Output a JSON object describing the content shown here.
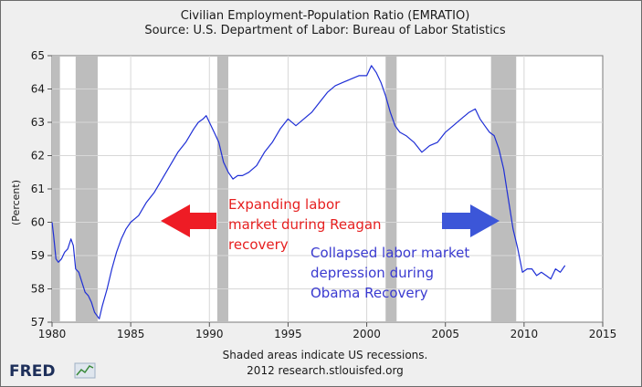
{
  "chart_data": {
    "type": "line",
    "title": "Civilian Employment-Population Ratio (EMRATIO)",
    "subtitle": "Source: U.S. Department of Labor: Bureau of Labor Statistics",
    "ylabel": "(Percent)",
    "xlim": [
      1980,
      2015
    ],
    "ylim": [
      57,
      65
    ],
    "x_ticks": [
      "1980",
      "1985",
      "1990",
      "1995",
      "2000",
      "2005",
      "2010",
      "2015"
    ],
    "y_ticks": [
      "57",
      "58",
      "59",
      "60",
      "61",
      "62",
      "63",
      "64",
      "65"
    ],
    "grid": true,
    "line_color": "#1f2fd6",
    "recessions": [
      [
        1980.0,
        1980.5
      ],
      [
        1981.5,
        1982.9
      ],
      [
        1990.5,
        1991.2
      ],
      [
        2001.2,
        2001.9
      ],
      [
        2007.9,
        2009.5
      ]
    ],
    "series": [
      {
        "x": [
          1980.0,
          1980.1,
          1980.25,
          1980.4,
          1980.6,
          1980.8,
          1981.0,
          1981.2,
          1981.35,
          1981.5,
          1981.7,
          1981.9,
          1982.1,
          1982.3,
          1982.5,
          1982.7,
          1982.85,
          1983.0,
          1983.2,
          1983.5,
          1983.8,
          1984.1,
          1984.4,
          1984.7,
          1985.0,
          1985.5,
          1986.0,
          1986.5,
          1987.0,
          1987.5,
          1988.0,
          1988.5,
          1989.0,
          1989.3,
          1989.6,
          1989.8,
          1990.0,
          1990.3,
          1990.6,
          1990.9,
          1991.2,
          1991.5,
          1991.8,
          1992.1,
          1992.5,
          1993.0,
          1993.5,
          1994.0,
          1994.5,
          1995.0,
          1995.5,
          1996.0,
          1996.5,
          1997.0,
          1997.5,
          1998.0,
          1998.5,
          1999.0,
          1999.5,
          2000.0,
          2000.3,
          2000.6,
          2000.9,
          2001.2,
          2001.5,
          2001.8,
          2002.1,
          2002.5,
          2003.0,
          2003.5,
          2004.0,
          2004.5,
          2005.0,
          2005.5,
          2006.0,
          2006.5,
          2006.9,
          2007.2,
          2007.5,
          2007.8,
          2008.1,
          2008.4,
          2008.7,
          2009.0,
          2009.3,
          2009.6,
          2009.9,
          2010.2,
          2010.5,
          2010.8,
          2011.1,
          2011.4,
          2011.7,
          2012.0,
          2012.3,
          2012.6
        ],
        "y": [
          60.0,
          59.6,
          58.9,
          58.8,
          58.9,
          59.1,
          59.2,
          59.5,
          59.3,
          58.6,
          58.5,
          58.2,
          57.9,
          57.8,
          57.6,
          57.3,
          57.2,
          57.1,
          57.5,
          58.0,
          58.6,
          59.1,
          59.5,
          59.8,
          60.0,
          60.2,
          60.6,
          60.9,
          61.3,
          61.7,
          62.1,
          62.4,
          62.8,
          63.0,
          63.1,
          63.2,
          63.0,
          62.7,
          62.4,
          61.8,
          61.5,
          61.3,
          61.4,
          61.4,
          61.5,
          61.7,
          62.1,
          62.4,
          62.8,
          63.1,
          62.9,
          63.1,
          63.3,
          63.6,
          63.9,
          64.1,
          64.2,
          64.3,
          64.4,
          64.4,
          64.7,
          64.5,
          64.2,
          63.8,
          63.3,
          62.9,
          62.7,
          62.6,
          62.4,
          62.1,
          62.3,
          62.4,
          62.7,
          62.9,
          63.1,
          63.3,
          63.4,
          63.1,
          62.9,
          62.7,
          62.6,
          62.2,
          61.6,
          60.7,
          59.8,
          59.2,
          58.5,
          58.6,
          58.6,
          58.4,
          58.5,
          58.4,
          58.3,
          58.6,
          58.5,
          58.7
        ]
      }
    ]
  },
  "annotations": {
    "reagan_lines": [
      "Expanding labor",
      "market during Reagan",
      "recovery"
    ],
    "reagan_color": "#e62020",
    "obama_lines": [
      "Collapsed labor market",
      "depression during",
      "Obama Recovery"
    ],
    "obama_color": "#3a3ad0",
    "red_arrow_color": "#ee1c25",
    "blue_arrow_color": "#3c56d8"
  },
  "footer": {
    "note": "Shaded areas indicate US recessions.",
    "credit": "2012 research.stlouisfed.org"
  },
  "logo": {
    "text": "FRED",
    "icon": "chart-line-icon"
  }
}
